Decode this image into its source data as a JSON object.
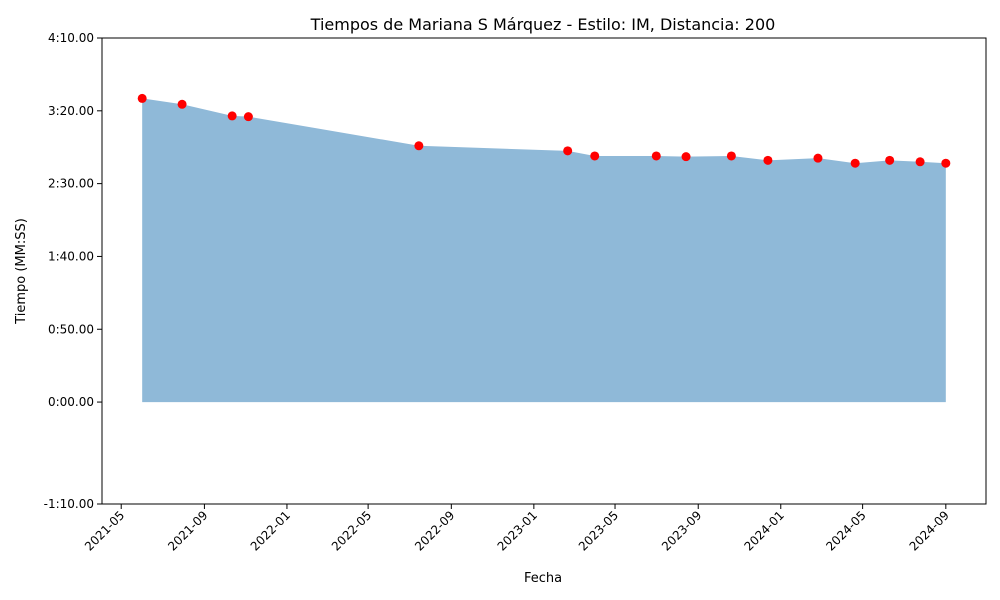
{
  "chart_data": {
    "type": "area",
    "title": "Tiempos de Mariana S Márquez - Estilo: IM, Distancia: 200",
    "xlabel": "Fecha",
    "ylabel": "Tiempo (MM:SS)",
    "x_ticks": [
      "2021-05",
      "2021-09",
      "2022-01",
      "2022-05",
      "2022-09",
      "2023-01",
      "2023-05",
      "2023-09",
      "2024-01",
      "2024-05",
      "2024-09"
    ],
    "y_ticks": [
      "-1:10.00",
      "0:00.00",
      "0:50.00",
      "1:40.00",
      "2:30.00",
      "3:20.00",
      "4:10.00"
    ],
    "ylim": [
      "-1:10.00",
      "4:10.00"
    ],
    "grid": false,
    "area_color": "#8fb9d8",
    "marker_color": "#ff0000",
    "points": [
      {
        "x": "2021-06-01",
        "y": "3:28.5"
      },
      {
        "x": "2021-07-30",
        "y": "3:24.5"
      },
      {
        "x": "2021-10-12",
        "y": "3:16.5"
      },
      {
        "x": "2021-11-05",
        "y": "3:16.0"
      },
      {
        "x": "2022-07-15",
        "y": "2:56.0"
      },
      {
        "x": "2023-02-20",
        "y": "2:52.5"
      },
      {
        "x": "2023-04-01",
        "y": "2:49.0"
      },
      {
        "x": "2023-07-01",
        "y": "2:49.0"
      },
      {
        "x": "2023-08-14",
        "y": "2:48.5"
      },
      {
        "x": "2023-10-20",
        "y": "2:49.0"
      },
      {
        "x": "2023-12-13",
        "y": "2:46.0"
      },
      {
        "x": "2024-02-25",
        "y": "2:47.5"
      },
      {
        "x": "2024-04-20",
        "y": "2:44.0"
      },
      {
        "x": "2024-06-10",
        "y": "2:46.0"
      },
      {
        "x": "2024-07-25",
        "y": "2:45.0"
      },
      {
        "x": "2024-09-01",
        "y": "2:44.0"
      }
    ]
  }
}
